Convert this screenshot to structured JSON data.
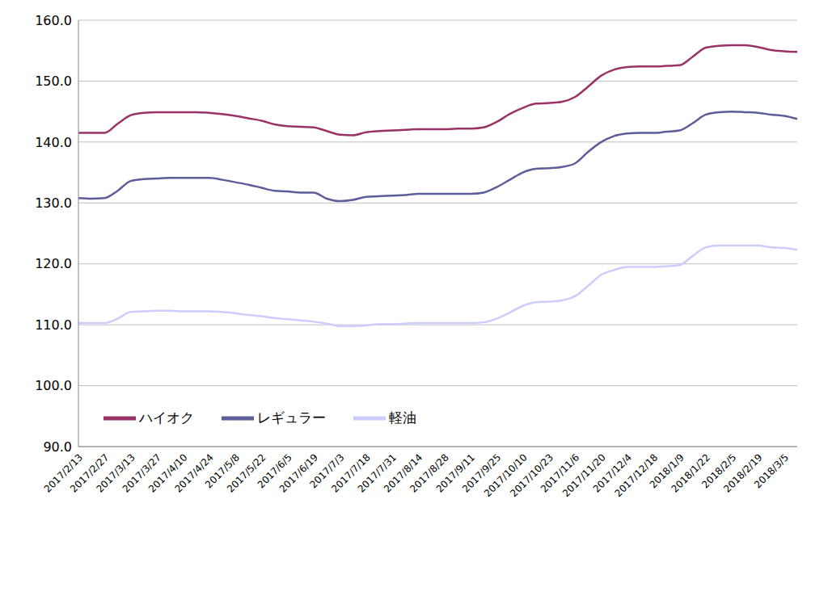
{
  "chart_data": {
    "type": "line",
    "categories": [
      "2017/2/13",
      null,
      "2017/2/27",
      null,
      "2017/3/13",
      null,
      "2017/3/27",
      null,
      "2017/4/10",
      null,
      "2017/4/24",
      null,
      "2017/5/8",
      null,
      "2017/5/22",
      null,
      "2017/6/5",
      null,
      "2017/6/19",
      null,
      "2017/7/3",
      null,
      "2017/7/18",
      null,
      "2017/7/31",
      null,
      "2017/8/14",
      null,
      "2017/8/28",
      null,
      "2017/9/11",
      null,
      "2017/9/25",
      null,
      "2017/10/10",
      null,
      "2017/10/23",
      null,
      "2017/11/6",
      null,
      "2017/11/20",
      null,
      "2017/12/4",
      null,
      "2017/12/18",
      null,
      "2018/1/9",
      null,
      "2018/1/22",
      null,
      "2018/2/5",
      null,
      "2018/2/19",
      null,
      "2018/3/5",
      null
    ],
    "series": [
      {
        "name": "レギュラー",
        "color": "#5d5d9a",
        "values": [
          130.8,
          130.7,
          130.8,
          132.0,
          133.6,
          133.9,
          134.0,
          134.1,
          134.1,
          134.1,
          134.1,
          133.8,
          133.4,
          133.0,
          132.5,
          132.0,
          131.9,
          131.7,
          131.7,
          130.7,
          130.3,
          130.5,
          131.0,
          131.1,
          131.2,
          131.3,
          131.5,
          131.5,
          131.5,
          131.5,
          131.5,
          131.7,
          132.6,
          133.8,
          135.0,
          135.6,
          135.7,
          135.9,
          136.5,
          138.4,
          140.0,
          141.0,
          141.4,
          141.5,
          141.5,
          141.7,
          141.9,
          143.1,
          144.5,
          144.9,
          145.0,
          144.9,
          144.8,
          144.5,
          144.3,
          143.8
        ]
      },
      {
        "name": "ハイオク",
        "color": "#993366",
        "values": [
          141.5,
          141.5,
          141.5,
          143.0,
          144.4,
          144.8,
          144.9,
          144.9,
          144.9,
          144.9,
          144.8,
          144.6,
          144.3,
          143.9,
          143.5,
          142.9,
          142.6,
          142.5,
          142.4,
          141.8,
          141.2,
          141.1,
          141.6,
          141.8,
          141.9,
          142.0,
          142.1,
          142.1,
          142.1,
          142.2,
          142.2,
          142.4,
          143.3,
          144.6,
          145.6,
          146.3,
          146.4,
          146.6,
          147.4,
          149.1,
          150.9,
          151.9,
          152.3,
          152.4,
          152.4,
          152.5,
          152.6,
          154.0,
          155.5,
          155.8,
          155.9,
          155.9,
          155.6,
          155.1,
          154.9,
          154.8
        ]
      },
      {
        "name": "軽油",
        "color": "#ccccff",
        "values": [
          110.3,
          110.3,
          110.3,
          111.0,
          112.1,
          112.2,
          112.3,
          112.3,
          112.2,
          112.2,
          112.2,
          112.1,
          111.9,
          111.6,
          111.4,
          111.1,
          110.9,
          110.7,
          110.5,
          110.2,
          109.8,
          109.8,
          109.9,
          110.1,
          110.1,
          110.2,
          110.3,
          110.3,
          110.3,
          110.3,
          110.3,
          110.4,
          111.0,
          112.0,
          113.1,
          113.7,
          113.8,
          114.0,
          114.7,
          116.4,
          118.2,
          119.0,
          119.5,
          119.5,
          119.5,
          119.6,
          119.8,
          121.3,
          122.7,
          123.0,
          123.0,
          123.0,
          123.0,
          122.7,
          122.6,
          122.3
        ]
      }
    ],
    "ylim": [
      90,
      160
    ],
    "yticks": [
      {
        "value": 90,
        "label": "90.0"
      },
      {
        "value": 100,
        "label": "100.0"
      },
      {
        "value": 110,
        "label": "110.0"
      },
      {
        "value": 120,
        "label": "120.0"
      },
      {
        "value": 130,
        "label": "130.0"
      },
      {
        "value": 140,
        "label": "140.0"
      },
      {
        "value": 150,
        "label": "150.0"
      },
      {
        "value": 160,
        "label": "160.0"
      }
    ],
    "grid": true,
    "legend": "lower left"
  }
}
